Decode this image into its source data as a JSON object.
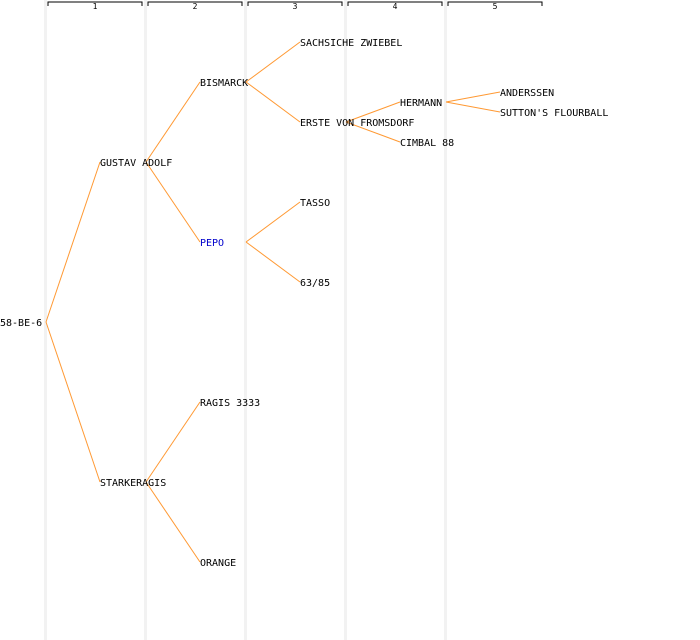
{
  "colors": {
    "background": "#ffffff",
    "column_band": "#f2f2f2",
    "edge": "#ff9933",
    "text": "#000000",
    "highlight": "#0000cc",
    "header_bracket": "#000000"
  },
  "generations": [
    "1",
    "2",
    "3",
    "4",
    "5"
  ],
  "pedigree": {
    "root": "58-BE-6",
    "nodes": [
      {
        "id": "n_root",
        "label": "58-BE-6",
        "gen": 0,
        "parent": null,
        "highlight": false
      },
      {
        "id": "n_gustav",
        "label": "GUSTAV ADOLF",
        "gen": 1,
        "parent": "n_root",
        "highlight": false
      },
      {
        "id": "n_starke",
        "label": "STARKERAGIS",
        "gen": 1,
        "parent": "n_root",
        "highlight": false
      },
      {
        "id": "n_bismarck",
        "label": "BISMARCK",
        "gen": 2,
        "parent": "n_gustav",
        "highlight": false
      },
      {
        "id": "n_pepo",
        "label": "PEPO",
        "gen": 2,
        "parent": "n_gustav",
        "highlight": true
      },
      {
        "id": "n_ragis",
        "label": "RAGIS 3333",
        "gen": 2,
        "parent": "n_starke",
        "highlight": false
      },
      {
        "id": "n_orange",
        "label": "ORANGE",
        "gen": 2,
        "parent": "n_starke",
        "highlight": false
      },
      {
        "id": "n_sachs",
        "label": "SACHSICHE ZWIEBEL",
        "gen": 3,
        "parent": "n_bismarck",
        "highlight": false
      },
      {
        "id": "n_erste",
        "label": "ERSTE VON FROMSDORF",
        "gen": 3,
        "parent": "n_bismarck",
        "highlight": false
      },
      {
        "id": "n_tasso",
        "label": "TASSO",
        "gen": 3,
        "parent": "n_pepo",
        "highlight": false
      },
      {
        "id": "n_6385",
        "label": "63/85",
        "gen": 3,
        "parent": "n_pepo",
        "highlight": false
      },
      {
        "id": "n_hermann",
        "label": "HERMANN",
        "gen": 4,
        "parent": "n_erste",
        "highlight": false
      },
      {
        "id": "n_cimbal",
        "label": "CIMBAL 88",
        "gen": 4,
        "parent": "n_erste",
        "highlight": false
      },
      {
        "id": "n_anderssen",
        "label": "ANDERSSEN",
        "gen": 5,
        "parent": "n_hermann",
        "highlight": false
      },
      {
        "id": "n_sutton",
        "label": "SUTTON'S FLOURBALL",
        "gen": 5,
        "parent": "n_hermann",
        "highlight": false
      }
    ]
  }
}
